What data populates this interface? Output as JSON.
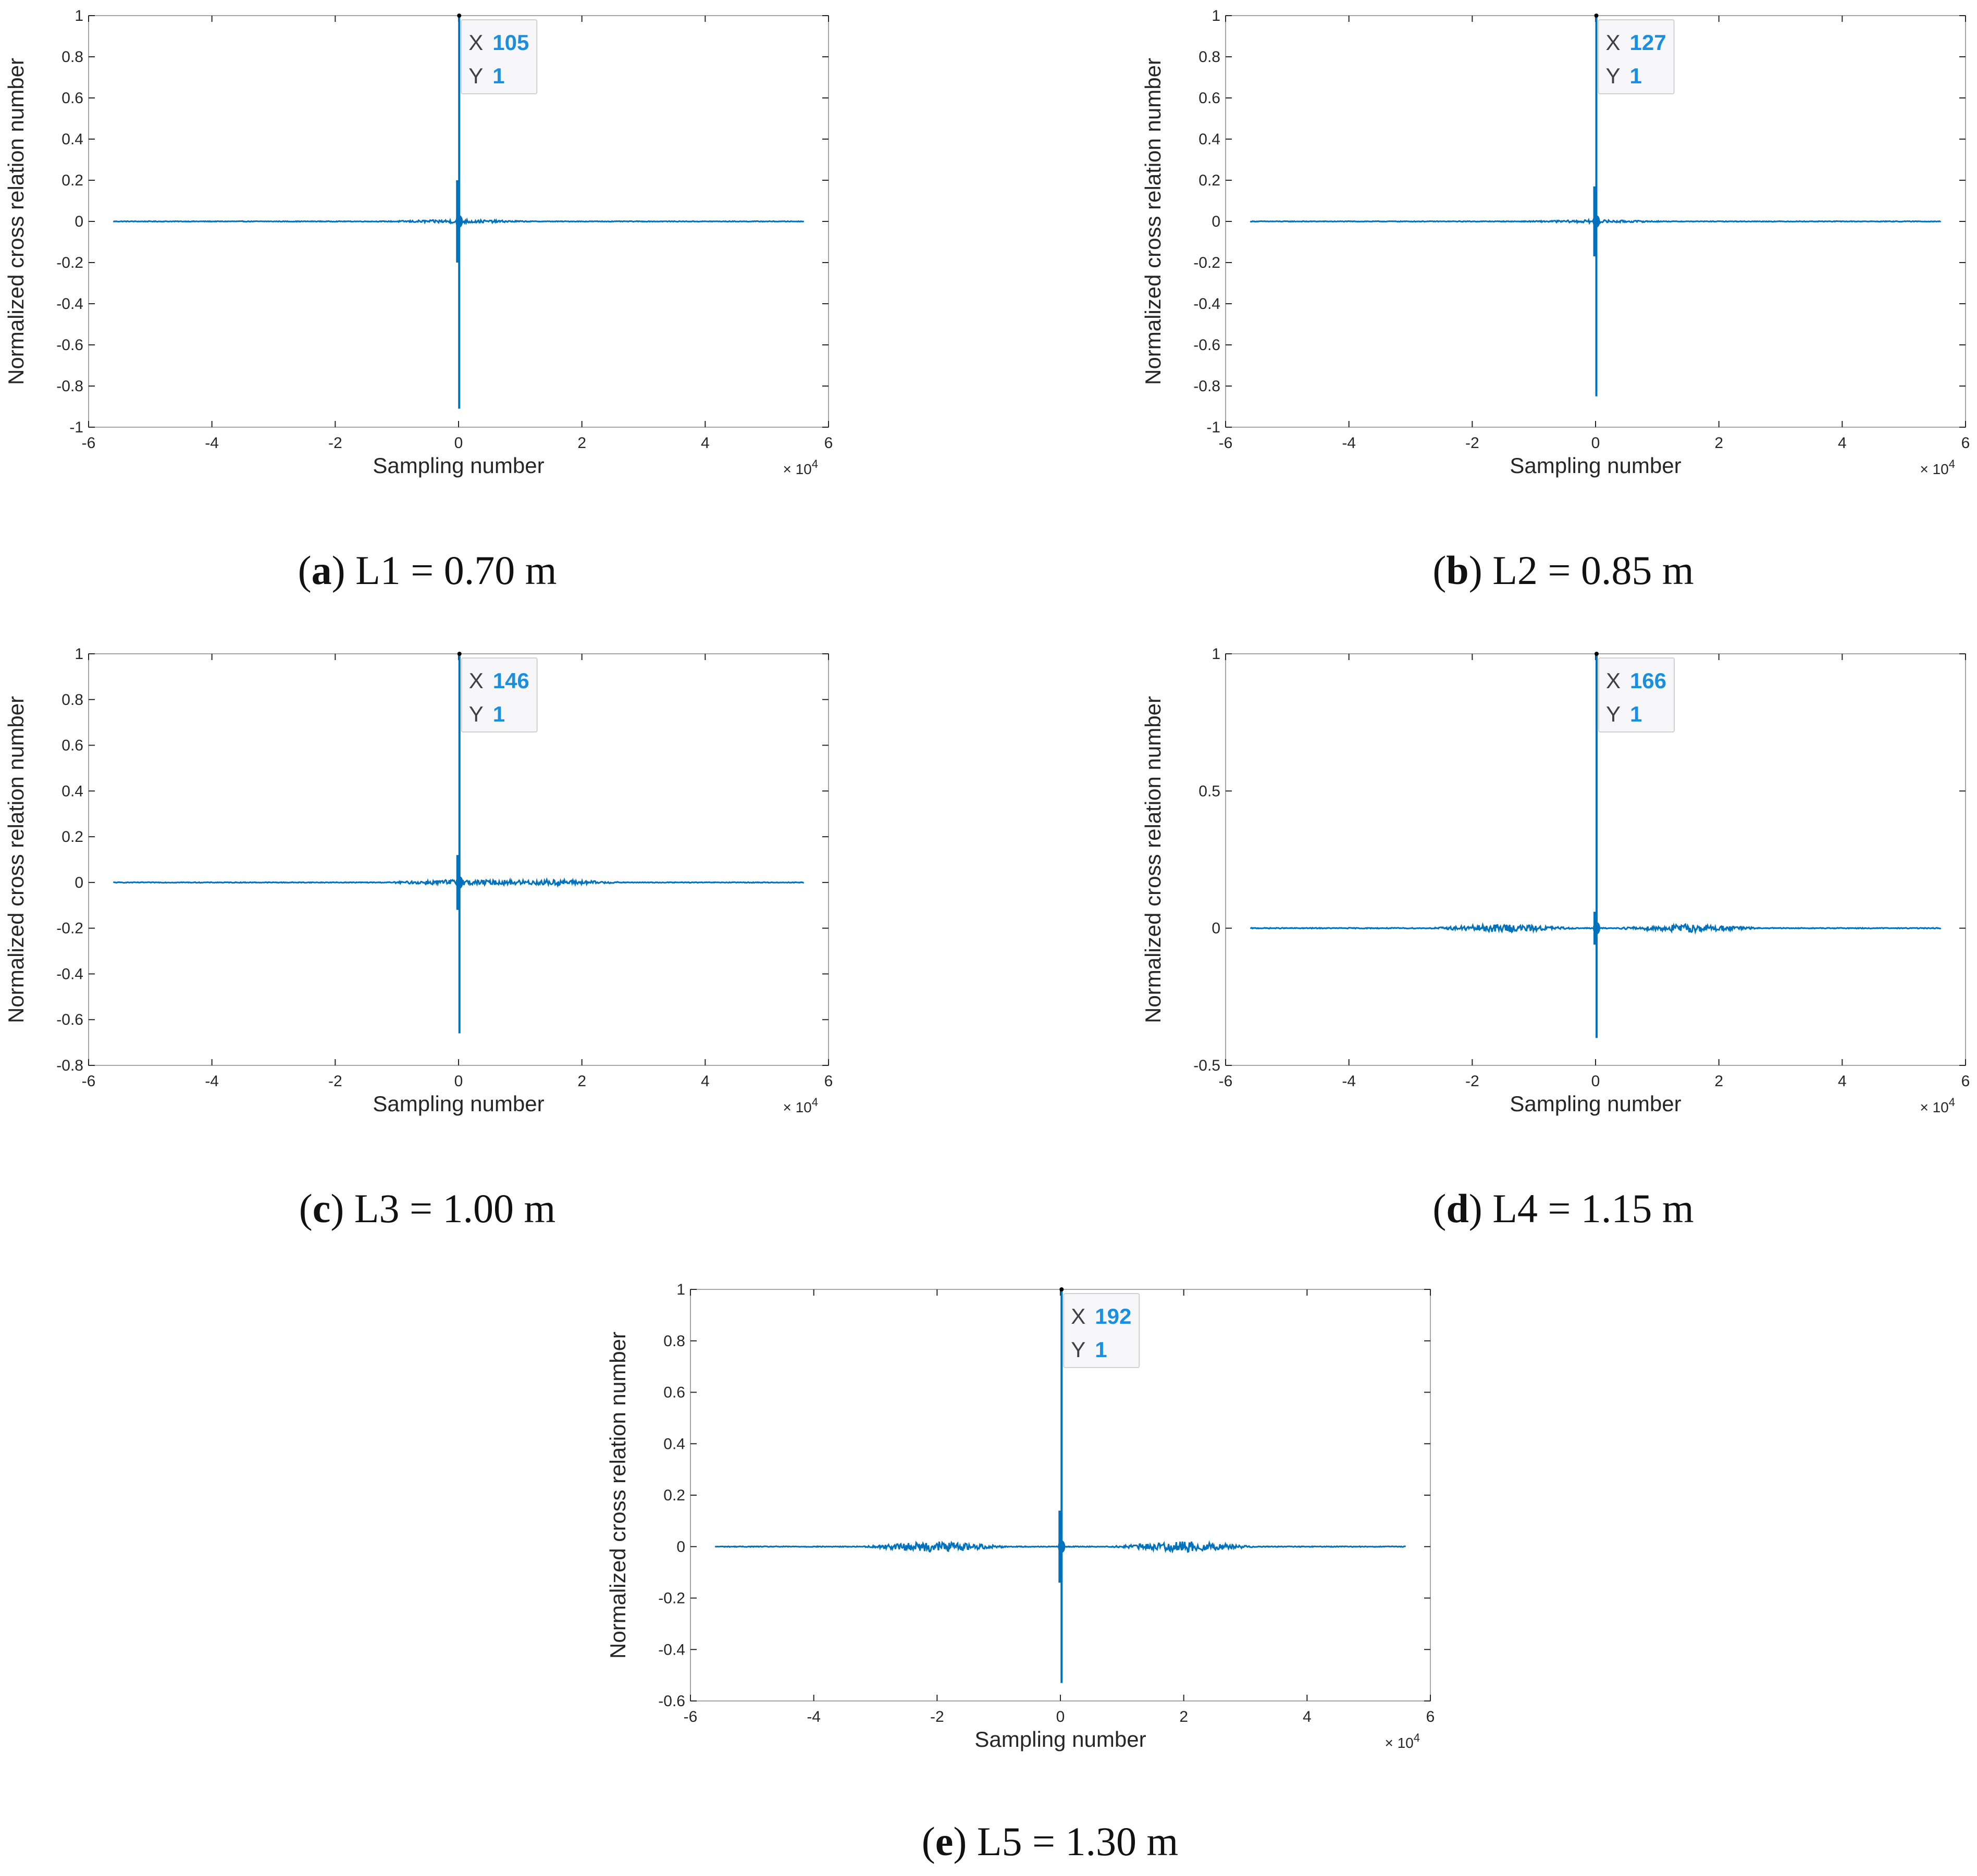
{
  "chart_data": [
    {
      "type": "line",
      "panel_letter": "a",
      "caption_text": "L1 = 0.70 m",
      "xlabel": "Sampling number",
      "ylabel": "Normalized cross relation number",
      "x_exponent": "× 10",
      "x_exponent_power": "4",
      "xlim": [
        -6,
        6
      ],
      "ylim": [
        -1,
        1
      ],
      "xticks": [
        "-6",
        "-4",
        "-2",
        "0",
        "2",
        "4",
        "6"
      ],
      "yticks": [
        "-1",
        "-0.8",
        "-0.6",
        "-0.4",
        "-0.2",
        "0",
        "0.2",
        "0.4",
        "0.6",
        "0.8",
        "1"
      ],
      "signal_x_range": [
        -5.6,
        5.6
      ],
      "peak": {
        "x": 105,
        "y": 1
      },
      "min_y": -0.91,
      "secondary_peak_y": 0.2,
      "noise_amplitude": 0.008,
      "noise_center_x": [
        0
      ],
      "datatip": {
        "x_key": "X",
        "x_value": "105",
        "y_key": "Y",
        "y_value": "1"
      },
      "line_color": "#0072bd"
    },
    {
      "type": "line",
      "panel_letter": "b",
      "caption_text": "L2 = 0.85 m",
      "xlabel": "Sampling number",
      "ylabel": "Normalized cross relation number",
      "x_exponent": "× 10",
      "x_exponent_power": "4",
      "xlim": [
        -6,
        6
      ],
      "ylim": [
        -1,
        1
      ],
      "xticks": [
        "-6",
        "-4",
        "-2",
        "0",
        "2",
        "4",
        "6"
      ],
      "yticks": [
        "-1",
        "-0.8",
        "-0.6",
        "-0.4",
        "-0.2",
        "0",
        "0.2",
        "0.4",
        "0.6",
        "0.8",
        "1"
      ],
      "signal_x_range": [
        -5.6,
        5.6
      ],
      "peak": {
        "x": 127,
        "y": 1
      },
      "min_y": -0.85,
      "secondary_peak_y": 0.17,
      "noise_amplitude": 0.006,
      "noise_center_x": [
        0
      ],
      "datatip": {
        "x_key": "X",
        "x_value": "127",
        "y_key": "Y",
        "y_value": "1"
      },
      "line_color": "#0072bd"
    },
    {
      "type": "line",
      "panel_letter": "c",
      "caption_text": "L3 = 1.00 m",
      "xlabel": "Sampling number",
      "ylabel": "Normalized cross relation number",
      "x_exponent": "× 10",
      "x_exponent_power": "4",
      "xlim": [
        -6,
        6
      ],
      "ylim": [
        -0.8,
        1
      ],
      "xticks": [
        "-6",
        "-4",
        "-2",
        "0",
        "2",
        "4",
        "6"
      ],
      "yticks": [
        "-0.8",
        "-0.6",
        "-0.4",
        "-0.2",
        "0",
        "0.2",
        "0.4",
        "0.6",
        "0.8",
        "1"
      ],
      "signal_x_range": [
        -5.6,
        5.6
      ],
      "peak": {
        "x": 146,
        "y": 1
      },
      "min_y": -0.66,
      "secondary_peak_y": 0.12,
      "noise_amplitude": 0.012,
      "noise_center_x": [
        0,
        1.5
      ],
      "datatip": {
        "x_key": "X",
        "x_value": "146",
        "y_key": "Y",
        "y_value": "1"
      },
      "line_color": "#0072bd"
    },
    {
      "type": "line",
      "panel_letter": "d",
      "caption_text": "L4 = 1.15 m",
      "xlabel": "Sampling number",
      "ylabel": "Normalized cross relation number",
      "x_exponent": "× 10",
      "x_exponent_power": "4",
      "xlim": [
        -6,
        6
      ],
      "ylim": [
        -0.5,
        1
      ],
      "xticks": [
        "-6",
        "-4",
        "-2",
        "0",
        "2",
        "4",
        "6"
      ],
      "yticks": [
        "-0.5",
        "0",
        "0.5",
        "1"
      ],
      "signal_x_range": [
        -5.6,
        5.6
      ],
      "peak": {
        "x": 166,
        "y": 1
      },
      "min_y": -0.4,
      "secondary_peak_y": 0.06,
      "noise_amplitude": 0.014,
      "noise_center_x": [
        -1.5,
        1.5
      ],
      "datatip": {
        "x_key": "X",
        "x_value": "166",
        "y_key": "Y",
        "y_value": "1"
      },
      "line_color": "#0072bd"
    },
    {
      "type": "line",
      "panel_letter": "e",
      "caption_text": "L5 = 1.30 m",
      "xlabel": "Sampling number",
      "ylabel": "Normalized cross relation number",
      "x_exponent": "× 10",
      "x_exponent_power": "4",
      "xlim": [
        -6,
        6
      ],
      "ylim": [
        -0.6,
        1
      ],
      "xticks": [
        "-6",
        "-4",
        "-2",
        "0",
        "2",
        "4",
        "6"
      ],
      "yticks": [
        "-0.6",
        "-0.4",
        "-0.2",
        "0",
        "0.2",
        "0.4",
        "0.6",
        "0.8",
        "1"
      ],
      "signal_x_range": [
        -5.6,
        5.6
      ],
      "peak": {
        "x": 192,
        "y": 1
      },
      "min_y": -0.53,
      "secondary_peak_y": 0.14,
      "noise_amplitude": 0.02,
      "noise_center_x": [
        -2,
        2
      ],
      "datatip": {
        "x_key": "X",
        "x_value": "192",
        "y_key": "Y",
        "y_value": "1"
      },
      "line_color": "#0072bd"
    }
  ]
}
